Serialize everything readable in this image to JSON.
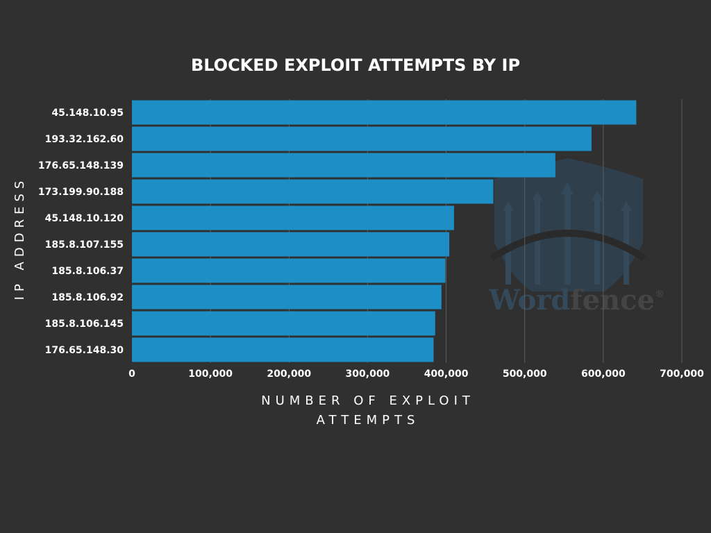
{
  "colors": {
    "background": "#303030",
    "bar": "#1e8fc6",
    "gridline": "#5e5e5e",
    "text": "#ffffff",
    "watermark": "#34495a"
  },
  "watermark": {
    "icon": "fence-shield-logo",
    "text_part1": "Word",
    "text_part2": "fence",
    "mark": "®"
  },
  "chart_data": {
    "type": "bar",
    "orientation": "horizontal",
    "title": "BLOCKED EXPLOIT ATTEMPTS BY IP",
    "xlabel": "NUMBER OF EXPLOIT ATTEMPTS",
    "xlabel_lines": [
      "NUMBER OF EXPLOIT",
      "ATTEMPTS"
    ],
    "ylabel": "IP ADDRESS",
    "categories": [
      "45.148.10.95",
      "193.32.162.60",
      "176.65.148.139",
      "173.199.90.188",
      "45.148.10.120",
      "185.8.107.155",
      "185.8.106.37",
      "185.8.106.92",
      "185.8.106.145",
      "176.65.148.30"
    ],
    "values": [
      642000,
      585000,
      539000,
      460000,
      410000,
      404000,
      399000,
      394000,
      386000,
      384000
    ],
    "xlim": [
      0,
      700000
    ],
    "xticks": [
      0,
      100000,
      200000,
      300000,
      400000,
      500000,
      600000,
      700000
    ],
    "xtick_labels": [
      "0",
      "100,000",
      "200,000",
      "300,000",
      "400,000",
      "500,000",
      "600,000",
      "700,000"
    ],
    "grid": true,
    "legend": "none"
  }
}
